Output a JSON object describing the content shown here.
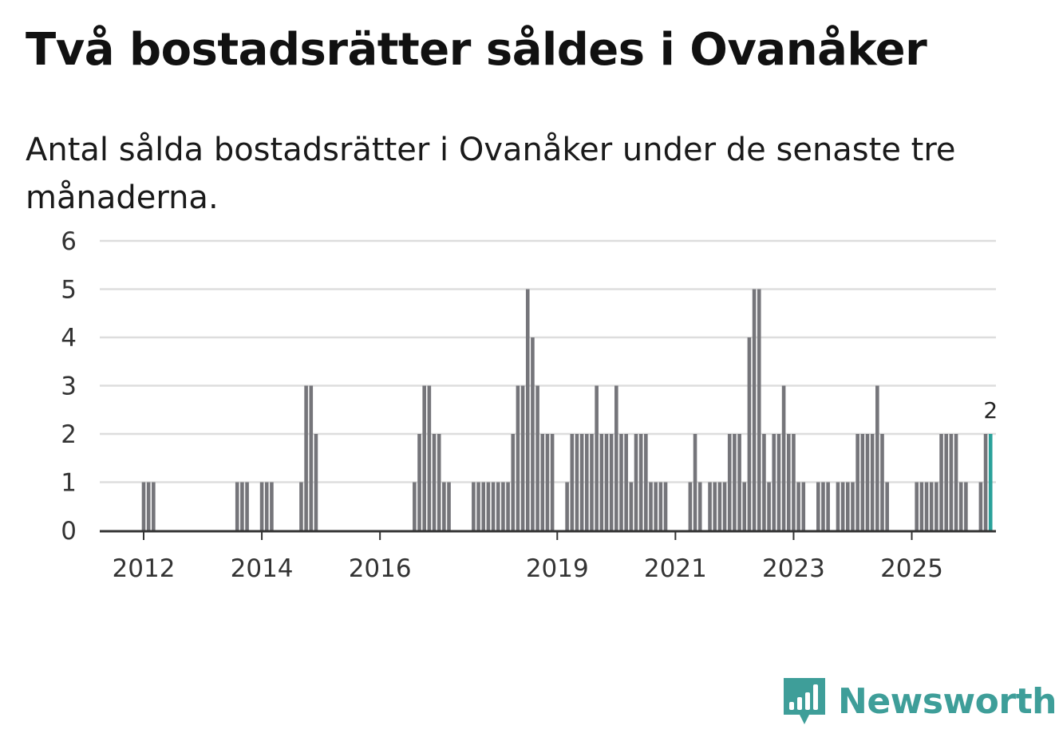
{
  "title": "Två bostadsrätter såldes i Ovanåker",
  "subtitle": "Antal sålda bostadsrätter i Ovanåker under de senaste tre månaderna.",
  "brand": {
    "name": "Newsworthy",
    "color": "#3e9e99",
    "icon": "newsworthy-bar-chart-icon"
  },
  "colors": {
    "bar": "#75757a",
    "highlight": "#2aa19a",
    "grid": "#dddddd",
    "axis": "#333333"
  },
  "chart_data": {
    "type": "bar",
    "title": "Två bostadsrätter såldes i Ovanåker",
    "xlabel": "",
    "ylabel": "",
    "ylim": [
      0,
      6
    ],
    "y_ticks": [
      0,
      1,
      2,
      3,
      4,
      5,
      6
    ],
    "x_ticks": [
      {
        "label": "2012",
        "month_index": 0
      },
      {
        "label": "2014",
        "month_index": 24
      },
      {
        "label": "2016",
        "month_index": 48
      },
      {
        "label": "2019",
        "month_index": 84
      },
      {
        "label": "2021",
        "month_index": 108
      },
      {
        "label": "2023",
        "month_index": 132
      },
      {
        "label": "2025",
        "month_index": 156
      }
    ],
    "start": "2011-10",
    "frequency": "monthly",
    "values": [
      0,
      0,
      0,
      1,
      1,
      1,
      0,
      0,
      0,
      0,
      0,
      0,
      0,
      0,
      0,
      0,
      0,
      0,
      0,
      0,
      0,
      0,
      1,
      1,
      1,
      0,
      0,
      1,
      1,
      1,
      0,
      0,
      0,
      0,
      0,
      1,
      3,
      3,
      2,
      0,
      0,
      0,
      0,
      0,
      0,
      0,
      0,
      0,
      0,
      0,
      0,
      0,
      0,
      0,
      0,
      0,
      0,
      0,
      1,
      2,
      3,
      3,
      2,
      2,
      1,
      1,
      0,
      0,
      0,
      0,
      1,
      1,
      1,
      1,
      1,
      1,
      1,
      1,
      2,
      3,
      3,
      5,
      4,
      3,
      2,
      2,
      2,
      0,
      0,
      1,
      2,
      2,
      2,
      2,
      2,
      3,
      2,
      2,
      2,
      3,
      2,
      2,
      1,
      2,
      2,
      2,
      1,
      1,
      1,
      1,
      0,
      0,
      0,
      0,
      1,
      2,
      1,
      0,
      1,
      1,
      1,
      1,
      2,
      2,
      2,
      1,
      4,
      5,
      5,
      2,
      1,
      2,
      2,
      3,
      2,
      2,
      1,
      1,
      0,
      0,
      1,
      1,
      1,
      0,
      1,
      1,
      1,
      1,
      2,
      2,
      2,
      2,
      3,
      2,
      1,
      0,
      0,
      0,
      0,
      0,
      1,
      1,
      1,
      1,
      1,
      2,
      2,
      2,
      2,
      1,
      1,
      0,
      0,
      1,
      2,
      2
    ],
    "highlight_last": true,
    "last_value_label": "2"
  }
}
